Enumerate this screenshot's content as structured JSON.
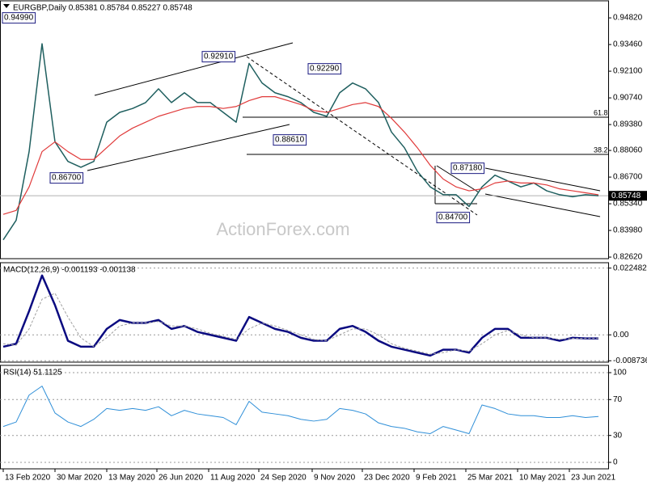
{
  "chart_data": [
    {
      "type": "line",
      "title": "EURGBP,Daily 0.85381 0.85784 0.85227 0.85748",
      "x": [
        0,
        8,
        16,
        24,
        32,
        40,
        48,
        56,
        64,
        72,
        80,
        88,
        96,
        104,
        112,
        120,
        128,
        136,
        144,
        152,
        160,
        168,
        176,
        184,
        192,
        200,
        208,
        216,
        224,
        232,
        240,
        248,
        256,
        264,
        272,
        280,
        288,
        296,
        304,
        312,
        320,
        328,
        336,
        344,
        352,
        360,
        368
      ],
      "xlim": [
        -2,
        374
      ],
      "ylim": [
        0.8254,
        0.9569
      ],
      "yticks": [
        {
          "value": 0.9482,
          "label": "0.94820"
        },
        {
          "value": 0.9346,
          "label": "0.93460"
        },
        {
          "value": 0.921,
          "label": "0.92100"
        },
        {
          "value": 0.9074,
          "label": "0.90740"
        },
        {
          "value": 0.8938,
          "label": "0.89380"
        },
        {
          "value": 0.8806,
          "label": "0.88060"
        },
        {
          "value": 0.867,
          "label": "0.86700"
        },
        {
          "value": 0.8534,
          "label": "0.85340"
        },
        {
          "value": 0.8398,
          "label": "0.83980"
        },
        {
          "value": 0.8262,
          "label": "0.82620"
        }
      ],
      "series": [
        {
          "color": "#1f5f5f",
          "width": 1.5,
          "values": [
            0.835,
            0.845,
            0.88,
            0.935,
            0.885,
            0.875,
            0.872,
            0.875,
            0.895,
            0.9,
            0.902,
            0.905,
            0.912,
            0.905,
            0.91,
            0.905,
            0.905,
            0.9,
            0.895,
            0.925,
            0.915,
            0.91,
            0.908,
            0.905,
            0.9,
            0.898,
            0.91,
            0.915,
            0.912,
            0.905,
            0.89,
            0.882,
            0.87,
            0.862,
            0.858,
            0.858,
            0.852,
            0.862,
            0.868,
            0.865,
            0.862,
            0.864,
            0.86,
            0.858,
            0.857,
            0.858,
            0.85748
          ]
        },
        {
          "color": "#e03a3a",
          "width": 1.2,
          "values": [
            0.848,
            0.85,
            0.862,
            0.88,
            0.885,
            0.88,
            0.876,
            0.876,
            0.882,
            0.888,
            0.892,
            0.895,
            0.898,
            0.9,
            0.902,
            0.903,
            0.903,
            0.902,
            0.903,
            0.906,
            0.908,
            0.908,
            0.906,
            0.904,
            0.901,
            0.9,
            0.902,
            0.904,
            0.905,
            0.903,
            0.897,
            0.89,
            0.882,
            0.873,
            0.866,
            0.862,
            0.86,
            0.861,
            0.864,
            0.865,
            0.864,
            0.864,
            0.863,
            0.861,
            0.86,
            0.859,
            0.858
          ]
        }
      ],
      "last_price": {
        "value": 0.85748,
        "label": "0.85748"
      },
      "annotations": [
        "0.94990",
        "0.92910",
        "0.92290",
        "0.88610",
        "0.86700",
        "0.87180",
        "0.84700",
        "61.8",
        "38.2"
      ],
      "watermark": "ActionForex.com"
    },
    {
      "type": "line",
      "title": "MACD(12,26,9) -0.001193 -0.001138",
      "x": [
        0,
        8,
        16,
        24,
        32,
        40,
        48,
        56,
        64,
        72,
        80,
        88,
        96,
        104,
        112,
        120,
        128,
        136,
        144,
        152,
        160,
        168,
        176,
        184,
        192,
        200,
        208,
        216,
        224,
        232,
        240,
        248,
        256,
        264,
        272,
        280,
        288,
        296,
        304,
        312,
        320,
        328,
        336,
        344,
        352,
        360,
        368
      ],
      "xlim": [
        -2,
        374
      ],
      "ylim": [
        -0.0092,
        0.0243
      ],
      "yticks": [
        0.022482,
        {
          "value": 0,
          "label": "0.00"
        },
        -0.008736
      ],
      "grid_dashed": true,
      "series": [
        {
          "color": "#0a0a80",
          "width": 2.5,
          "values": [
            -0.004,
            -0.003,
            0.008,
            0.02,
            0.01,
            -0.002,
            -0.004,
            -0.004,
            0.002,
            0.005,
            0.004,
            0.004,
            0.005,
            0.002,
            0.003,
            0.001,
            0,
            -0.001,
            -0.002,
            0.006,
            0.004,
            0.002,
            0.001,
            -0.001,
            -0.002,
            -0.002,
            0.002,
            0.003,
            0.001,
            -0.002,
            -0.004,
            -0.005,
            -0.006,
            -0.007,
            -0.005,
            -0.005,
            -0.006,
            -0.001,
            0.002,
            0.002,
            -0.001,
            -0.001,
            -0.001,
            -0.002,
            -0.001,
            -0.0012,
            -0.001193
          ]
        },
        {
          "color": "#a0a0a0",
          "width": 1,
          "dashed": true,
          "values": [
            -0.003,
            -0.0035,
            0.002,
            0.012,
            0.014,
            0.006,
            -0.001,
            -0.004,
            -0.001,
            0.003,
            0.004,
            0.004,
            0.0045,
            0.003,
            0.003,
            0.002,
            0.0005,
            -0.0005,
            -0.0015,
            0.002,
            0.004,
            0.003,
            0.0015,
            0,
            -0.0015,
            -0.002,
            0,
            0.002,
            0.002,
            0,
            -0.003,
            -0.0045,
            -0.0055,
            -0.0065,
            -0.006,
            -0.005,
            -0.0055,
            -0.003,
            0,
            0.0015,
            0,
            -0.001,
            -0.001,
            -0.0015,
            -0.0012,
            -0.0012,
            -0.001138
          ]
        }
      ]
    },
    {
      "type": "line",
      "title": "RSI(14) 51.1125",
      "x": [
        0,
        8,
        16,
        24,
        32,
        40,
        48,
        56,
        64,
        72,
        80,
        88,
        96,
        104,
        112,
        120,
        128,
        136,
        144,
        152,
        160,
        168,
        176,
        184,
        192,
        200,
        208,
        216,
        224,
        232,
        240,
        248,
        256,
        264,
        272,
        280,
        288,
        296,
        304,
        312,
        320,
        328,
        336,
        344,
        352,
        360,
        368
      ],
      "xlim": [
        -2,
        374
      ],
      "ylim": [
        -7.2,
        108.1
      ],
      "yticks": [
        100,
        70,
        30,
        0
      ],
      "grid_dashed": true,
      "series": [
        {
          "color": "#2f8fd8",
          "width": 1,
          "values": [
            40,
            45,
            75,
            85,
            55,
            45,
            40,
            48,
            60,
            58,
            60,
            58,
            62,
            52,
            58,
            54,
            52,
            50,
            42,
            68,
            56,
            54,
            52,
            48,
            46,
            48,
            60,
            58,
            54,
            44,
            40,
            38,
            34,
            32,
            40,
            36,
            32,
            64,
            60,
            54,
            52,
            52,
            50,
            50,
            52,
            50,
            51.1125
          ]
        }
      ],
      "xticks": [
        {
          "value": 0,
          "label": "13 Feb 2020"
        },
        {
          "value": 32,
          "label": "30 Mar 2020"
        },
        {
          "value": 64,
          "label": "13 May 2020"
        },
        {
          "value": 95,
          "label": "26 Jun 2020"
        },
        {
          "value": 127,
          "label": "11 Aug 2020"
        },
        {
          "value": 158,
          "label": "24 Sep 2020"
        },
        {
          "value": 191,
          "label": "9 Nov 2020"
        },
        {
          "value": 222,
          "label": "23 Dec 2020"
        },
        {
          "value": 254,
          "label": "9 Feb 2021"
        },
        {
          "value": 286,
          "label": "25 Mar 2021"
        },
        {
          "value": 318,
          "label": "10 May 2021"
        },
        {
          "value": 350,
          "label": "23 Jun 2021"
        }
      ]
    }
  ]
}
